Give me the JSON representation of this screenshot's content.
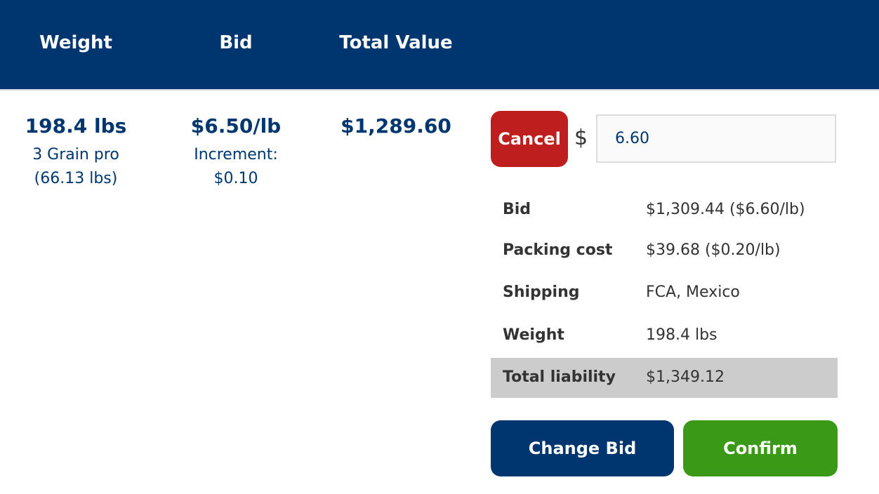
{
  "header": {
    "columns": [
      "Weight",
      "Bid",
      "Total Value"
    ]
  },
  "row": {
    "weight": {
      "value": "198.4 lbs",
      "detail": [
        "3 Grain pro",
        "(66.13 lbs)"
      ]
    },
    "bid": {
      "value": "$6.50/lb",
      "detail": [
        "Increment:",
        "$0.10"
      ]
    },
    "total_value": "$1,289.60"
  },
  "bid_form": {
    "cancel": "Cancel",
    "currency": "$",
    "input": "6.60",
    "summary": [
      {
        "label": "Bid",
        "value": "$1,309.44 ($6.60/lb)"
      },
      {
        "label": "Packing cost",
        "value": "$39.68 ($0.20/lb)"
      },
      {
        "label": "Shipping",
        "value": "FCA, Mexico"
      },
      {
        "label": "Weight",
        "value": "198.4 lbs"
      },
      {
        "label": "Total liability",
        "value": "$1,349.12"
      }
    ],
    "change_bid": "Change Bid",
    "confirm": "Confirm"
  }
}
